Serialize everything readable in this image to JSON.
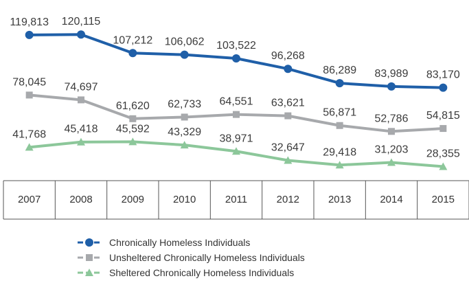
{
  "chart_data": {
    "type": "line",
    "x": [
      "2007",
      "2008",
      "2009",
      "2010",
      "2011",
      "2012",
      "2013",
      "2014",
      "2015"
    ],
    "ylim": [
      20000,
      125000
    ],
    "grid": false,
    "legend_position": "bottom",
    "series": [
      {
        "name": "Chronically Homeless Individuals",
        "color": "#1f5fa8",
        "marker": "circle",
        "values": [
          119813,
          120115,
          107212,
          106062,
          103522,
          96268,
          86289,
          83989,
          83170
        ],
        "labels": [
          "119,813",
          "120,115",
          "107,212",
          "106,062",
          "103,522",
          "96,268",
          "86,289",
          "83,989",
          "83,170"
        ]
      },
      {
        "name": "Unsheltered Chronically Homeless Individuals",
        "color": "#a7a9ac",
        "marker": "square",
        "values": [
          78045,
          74697,
          61620,
          62733,
          64551,
          63621,
          56871,
          52786,
          54815
        ],
        "labels": [
          "78,045",
          "74,697",
          "61,620",
          "62,733",
          "64,551",
          "63,621",
          "56,871",
          "52,786",
          "54,815"
        ]
      },
      {
        "name": "Sheltered Chronically Homeless Individuals",
        "color": "#8cc79a",
        "marker": "triangle",
        "values": [
          41768,
          45418,
          45592,
          43329,
          38971,
          32647,
          29418,
          31203,
          28355
        ],
        "labels": [
          "41,768",
          "45,418",
          "45,592",
          "43,329",
          "38,971",
          "32,647",
          "29,418",
          "31,203",
          "28,355"
        ]
      }
    ]
  }
}
